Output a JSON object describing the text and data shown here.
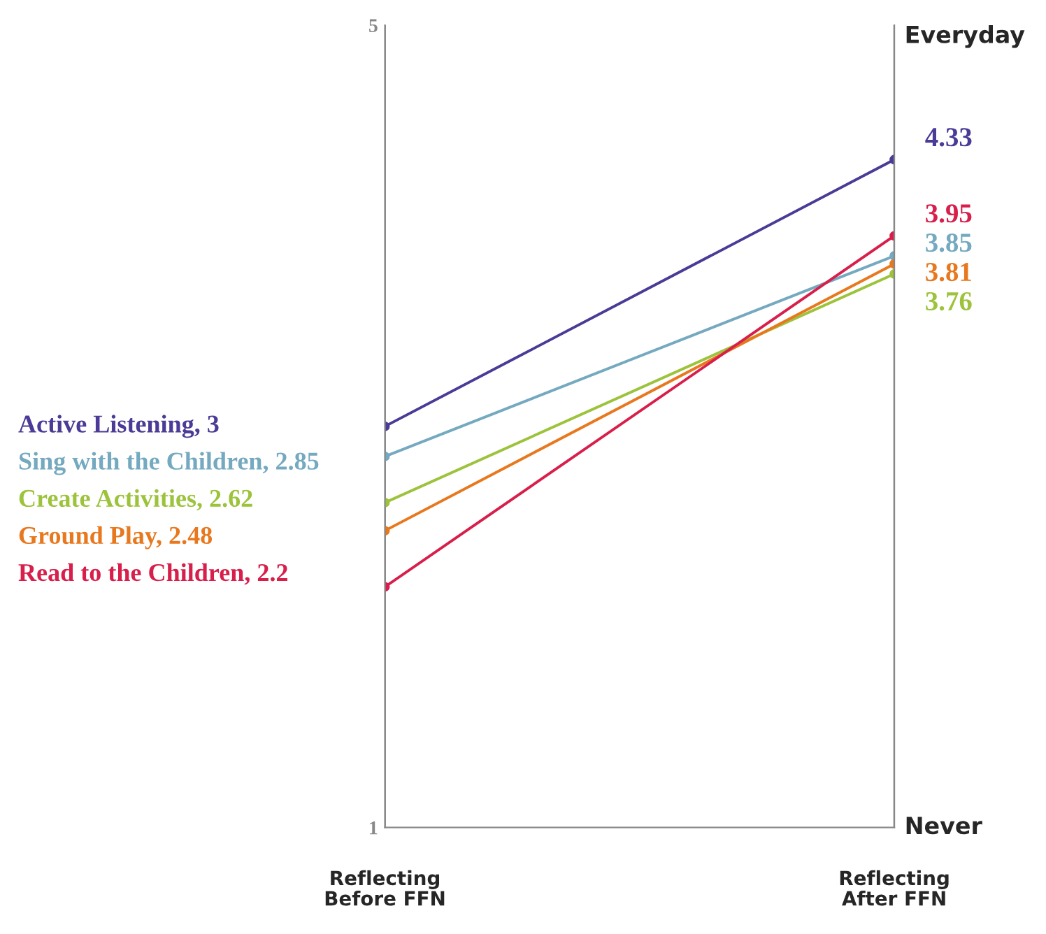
{
  "chart_data": {
    "type": "line",
    "categories": [
      "Reflecting\nBefore FFN",
      "Reflecting\nAfter FFN"
    ],
    "series": [
      {
        "name": "Active Listening, 3",
        "color": "#4b3a96",
        "values": [
          3,
          4.33
        ],
        "value_labels": [
          null,
          "4.33"
        ]
      },
      {
        "name": "Sing with the Children, 2.85",
        "color": "#74a9bf",
        "values": [
          2.85,
          3.85
        ],
        "value_labels": [
          null,
          "3.85"
        ]
      },
      {
        "name": "Create Activities, 2.62",
        "color": "#9cc33b",
        "values": [
          2.62,
          3.76
        ],
        "value_labels": [
          null,
          "3.76"
        ]
      },
      {
        "name": "Ground Play, 2.48",
        "color": "#e8781e",
        "values": [
          2.48,
          3.81
        ],
        "value_labels": [
          null,
          "3.81"
        ]
      },
      {
        "name": "Read to the Children, 2.2",
        "color": "#d81e4a",
        "values": [
          2.2,
          3.95
        ],
        "value_labels": [
          null,
          "3.95"
        ]
      }
    ],
    "ylim": [
      1,
      5
    ],
    "yticks": [
      1,
      5
    ],
    "annotations": [
      "Everyday",
      "Never"
    ],
    "marker": "circle",
    "line_style": "solid",
    "grid": "x",
    "legend": false
  }
}
